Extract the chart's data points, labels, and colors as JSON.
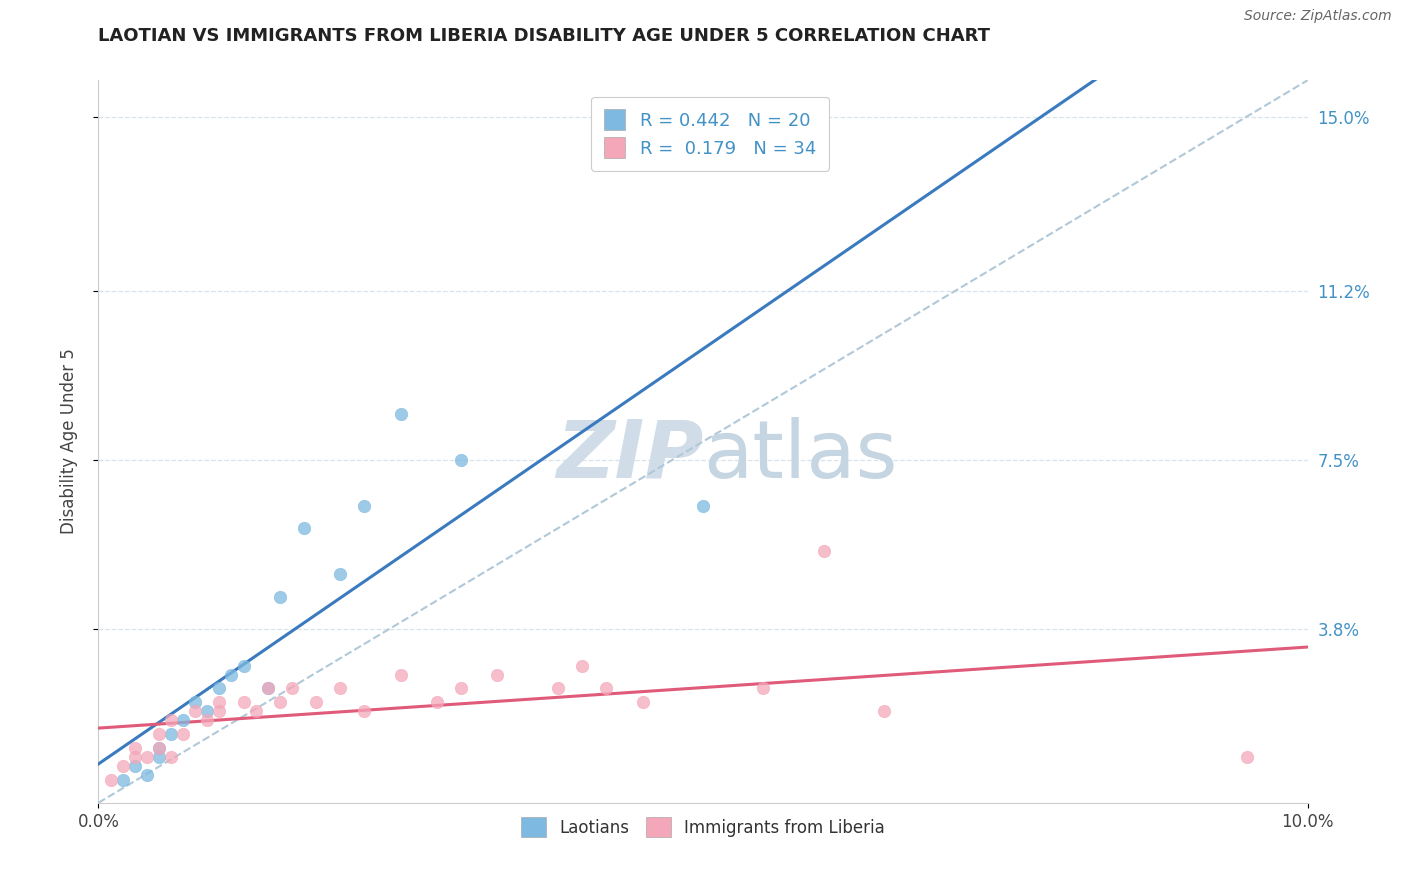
{
  "title": "LAOTIAN VS IMMIGRANTS FROM LIBERIA DISABILITY AGE UNDER 5 CORRELATION CHART",
  "source": "Source: ZipAtlas.com",
  "ylabel": "Disability Age Under 5",
  "xmin": 0.0,
  "xmax": 0.1,
  "ymin": 0.0,
  "ymax": 0.158,
  "r_blue": 0.442,
  "n_blue": 20,
  "r_pink": 0.179,
  "n_pink": 34,
  "blue_color": "#7db9e0",
  "pink_color": "#f4a7b9",
  "blue_line_color": "#3a7abf",
  "pink_line_color": "#e05a7a",
  "dash_line_color": "#b0c8d8",
  "grid_color": "#d8e4eb",
  "watermark_color": "#d0dde8",
  "blue_scatter_x": [
    0.002,
    0.003,
    0.004,
    0.005,
    0.005,
    0.006,
    0.007,
    0.008,
    0.009,
    0.01,
    0.011,
    0.012,
    0.014,
    0.015,
    0.017,
    0.02,
    0.022,
    0.025,
    0.03,
    0.05
  ],
  "blue_scatter_y": [
    0.005,
    0.008,
    0.006,
    0.01,
    0.012,
    0.015,
    0.018,
    0.022,
    0.02,
    0.025,
    0.028,
    0.03,
    0.025,
    0.045,
    0.06,
    0.05,
    0.065,
    0.085,
    0.075,
    0.065
  ],
  "pink_scatter_x": [
    0.001,
    0.002,
    0.003,
    0.003,
    0.004,
    0.005,
    0.005,
    0.006,
    0.006,
    0.007,
    0.008,
    0.009,
    0.01,
    0.01,
    0.012,
    0.013,
    0.014,
    0.015,
    0.016,
    0.018,
    0.02,
    0.022,
    0.025,
    0.028,
    0.03,
    0.033,
    0.038,
    0.04,
    0.042,
    0.045,
    0.055,
    0.06,
    0.065,
    0.095
  ],
  "pink_scatter_y": [
    0.005,
    0.008,
    0.01,
    0.012,
    0.01,
    0.012,
    0.015,
    0.01,
    0.018,
    0.015,
    0.02,
    0.018,
    0.02,
    0.022,
    0.022,
    0.02,
    0.025,
    0.022,
    0.025,
    0.022,
    0.025,
    0.02,
    0.028,
    0.022,
    0.025,
    0.028,
    0.025,
    0.03,
    0.025,
    0.022,
    0.025,
    0.055,
    0.02,
    0.01
  ]
}
